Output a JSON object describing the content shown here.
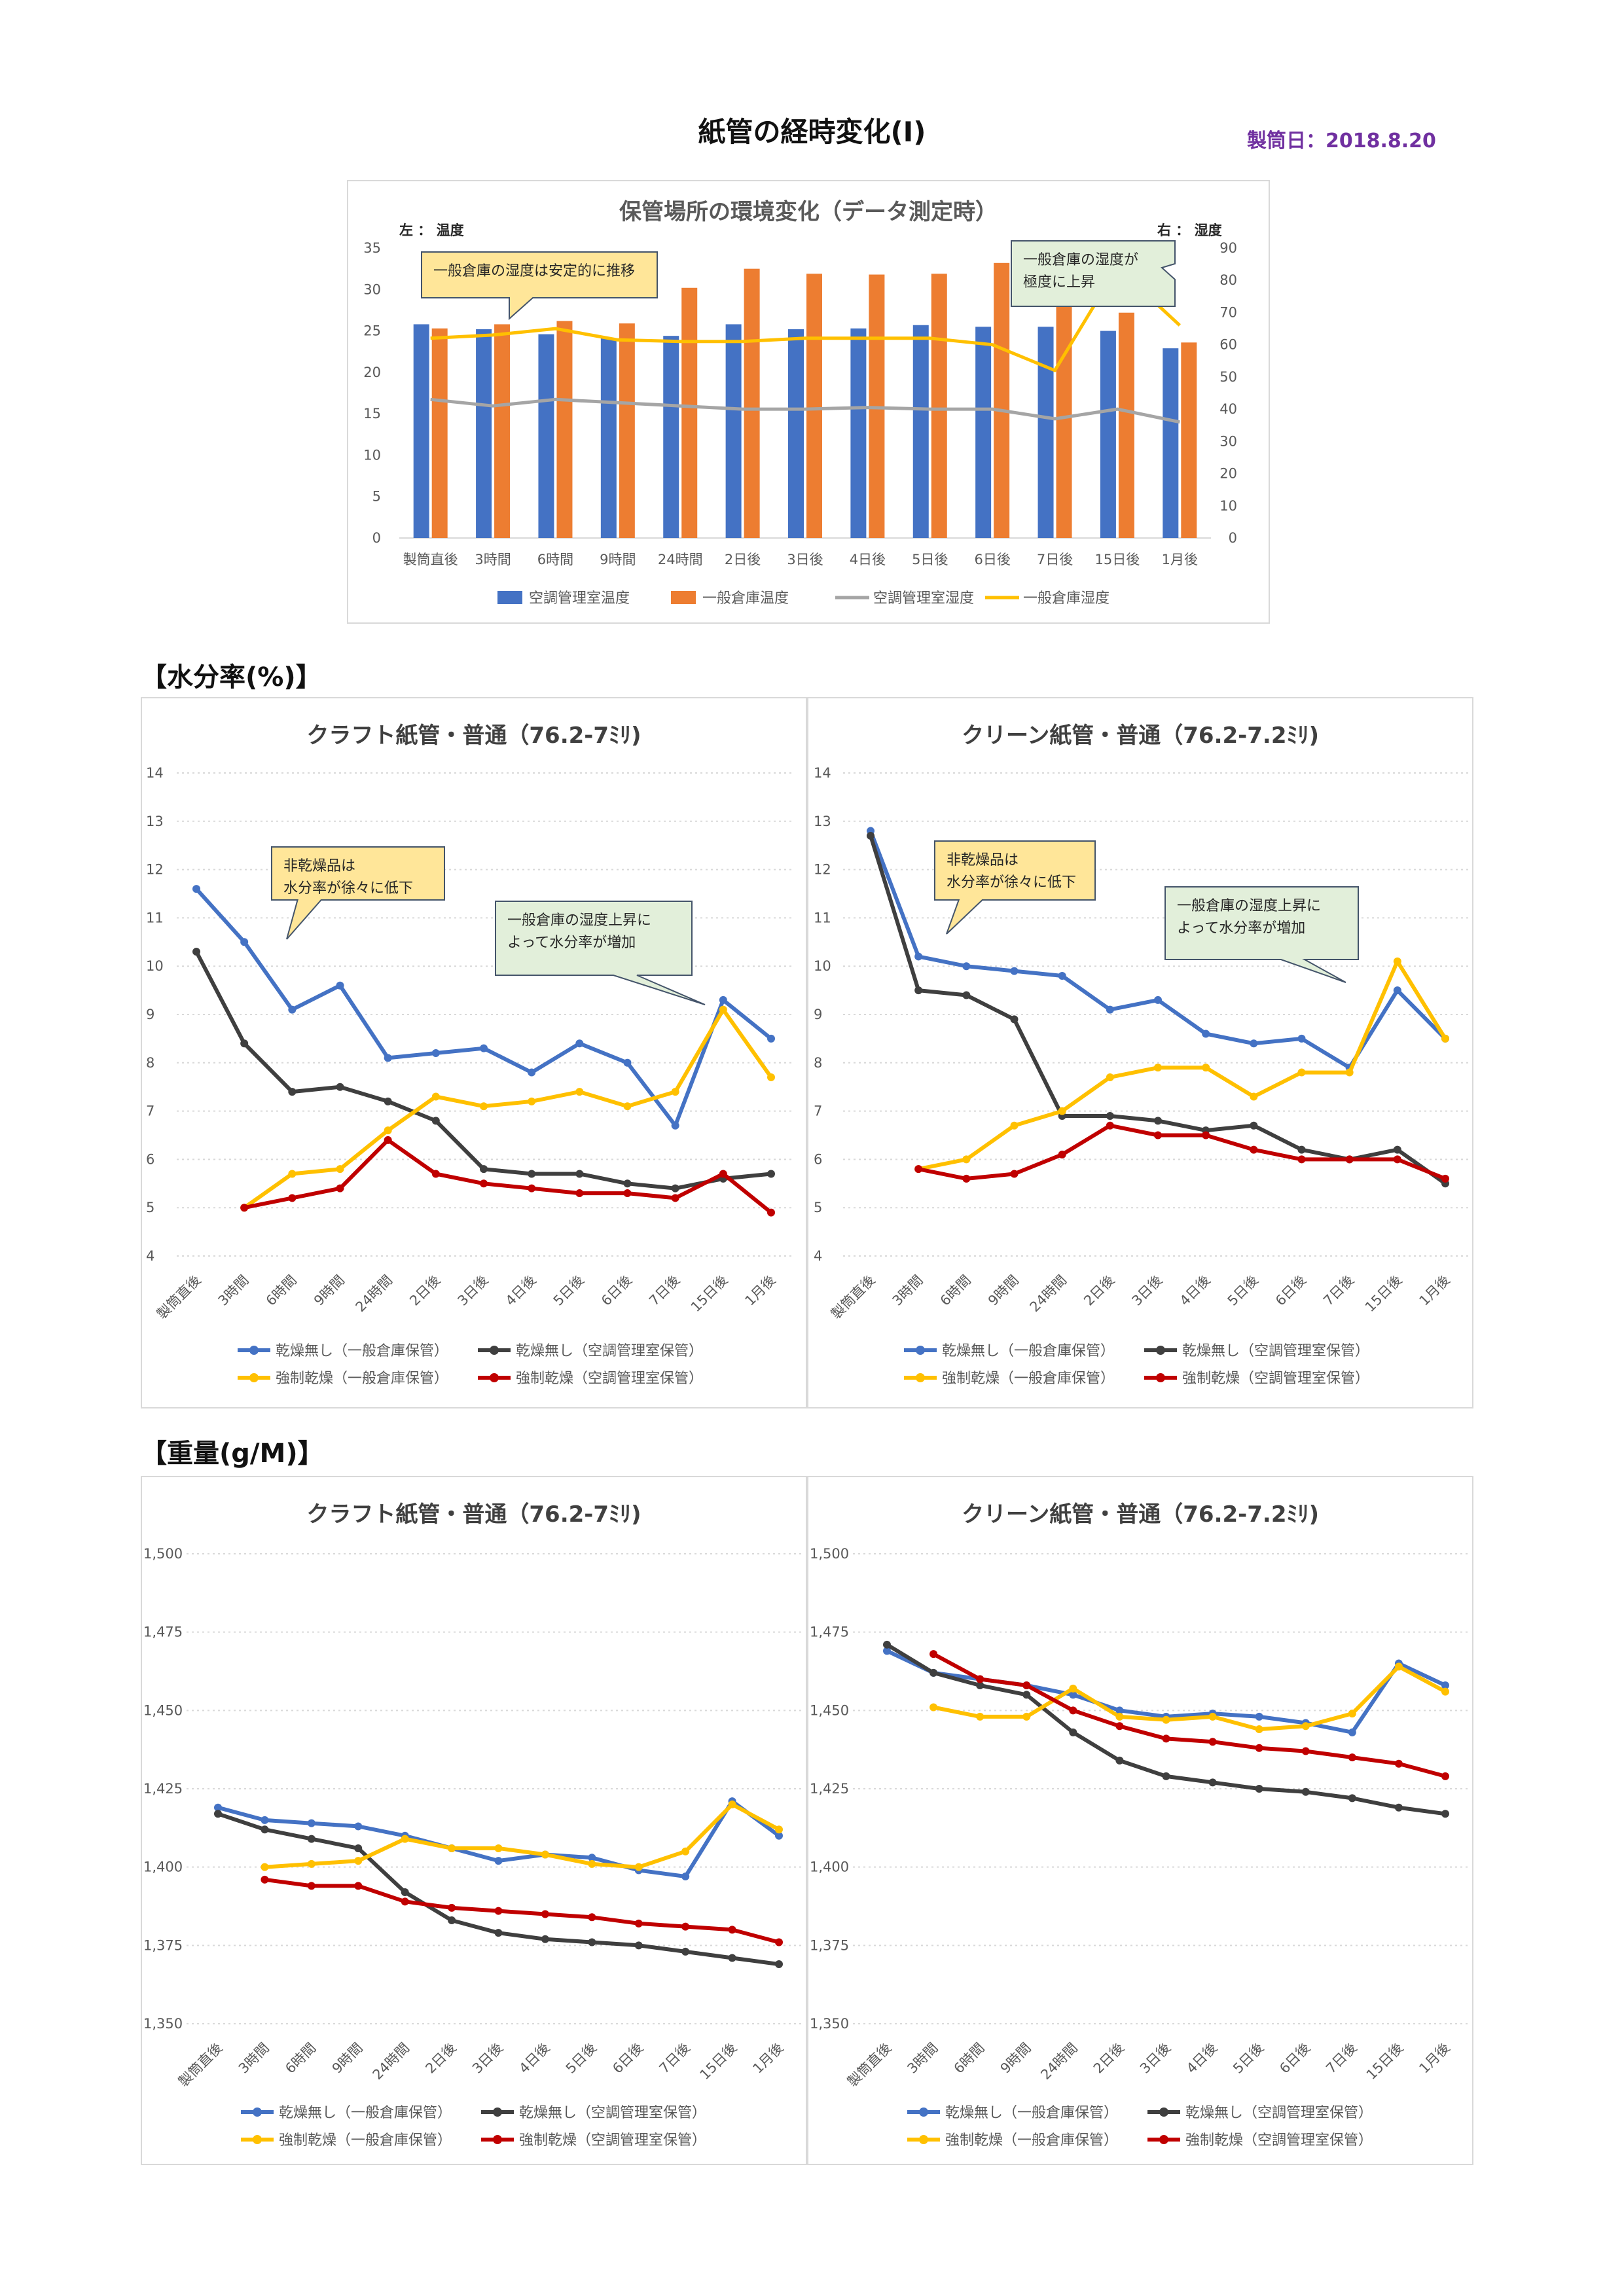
{
  "page": {
    "title": "紙管の経時変化(Ⅰ)",
    "make_date": "製筒日：2018.8.20",
    "section_moisture": "【水分率(%)】",
    "section_weight": "【重量(g/M)】"
  },
  "colors": {
    "blue": "#4472c4",
    "orange": "#ed7d31",
    "gray": "#a5a5a5",
    "yellow": "#ffc000",
    "dark": "#3f3f3f",
    "red": "#c00000",
    "callout_yellow": "#ffe699",
    "callout_green": "#e2efda",
    "callout_border": "#44546a",
    "grid": "#d9d9d9",
    "axis_text": "#595959"
  },
  "chart_data": [
    {
      "id": "env",
      "type": "bar",
      "title": "保管場所の環境変化（データ測定時）",
      "left_axis_label": "左 ： 温度",
      "right_axis_label": "右 ： 湿度",
      "categories": [
        "製筒直後",
        "3時間",
        "6時間",
        "9時間",
        "24時間",
        "2日後",
        "3日後",
        "4日後",
        "5日後",
        "6日後",
        "7日後",
        "15日後",
        "1月後"
      ],
      "ylim_left": [
        0,
        35
      ],
      "yticks_left": [
        0,
        5,
        10,
        15,
        20,
        25,
        30,
        35
      ],
      "ylim_right": [
        0,
        90
      ],
      "yticks_right": [
        0,
        10,
        20,
        30,
        40,
        50,
        60,
        70,
        80,
        90
      ],
      "bars": [
        {
          "name": "空調管理室温度",
          "color": "#4472c4",
          "values": [
            25.8,
            25.2,
            24.6,
            24.1,
            24.4,
            25.8,
            25.2,
            25.3,
            25.7,
            25.5,
            25.5,
            25.0,
            22.9
          ]
        },
        {
          "name": "一般倉庫温度",
          "color": "#ed7d31",
          "values": [
            25.3,
            25.8,
            26.2,
            25.9,
            30.2,
            32.5,
            31.9,
            31.8,
            31.9,
            33.2,
            33.2,
            27.2,
            23.6
          ]
        }
      ],
      "lines": [
        {
          "name": "空調管理室湿度",
          "color": "#a5a5a5",
          "axis": "right",
          "values": [
            43,
            41,
            43,
            42,
            41,
            40,
            40,
            40.5,
            40,
            40,
            37,
            40,
            36
          ]
        },
        {
          "name": "一般倉庫湿度",
          "color": "#ffc000",
          "axis": "right",
          "values": [
            62,
            63,
            65,
            61.5,
            61,
            61,
            62,
            62,
            62,
            60,
            52,
            84,
            66
          ]
        }
      ],
      "callouts": [
        {
          "text": [
            "一般倉庫の湿度は安定的に推移"
          ],
          "style": "yellow"
        },
        {
          "text": [
            "一般倉庫の湿度が",
            "極度に上昇"
          ],
          "style": "green"
        }
      ],
      "grid": false,
      "legend": "bottom"
    },
    {
      "id": "m1",
      "type": "line",
      "title": "クラフト紙管・普通（76.2-7ﾐﾘ)",
      "categories": [
        "製筒直後",
        "3時間",
        "6時間",
        "9時間",
        "24時間",
        "2日後",
        "3日後",
        "4日後",
        "5日後",
        "6日後",
        "7日後",
        "15日後",
        "1月後"
      ],
      "ylim": [
        4,
        14
      ],
      "yticks": [
        4,
        5,
        6,
        7,
        8,
        9,
        10,
        11,
        12,
        13,
        14
      ],
      "series": [
        {
          "name": "乾燥無し（一般倉庫保管）",
          "color": "#4472c4",
          "values": [
            11.6,
            10.5,
            9.1,
            9.6,
            8.1,
            8.2,
            8.3,
            7.8,
            8.4,
            8.0,
            6.7,
            9.3,
            8.5
          ]
        },
        {
          "name": "乾燥無し（空調管理室保管）",
          "color": "#3f3f3f",
          "values": [
            10.3,
            8.4,
            7.4,
            7.5,
            7.2,
            6.8,
            5.8,
            5.7,
            5.7,
            5.5,
            5.4,
            5.6,
            5.7
          ]
        },
        {
          "name": "強制乾燥（一般倉庫保管）",
          "color": "#ffc000",
          "values": [
            null,
            5.0,
            5.7,
            5.8,
            6.6,
            7.3,
            7.1,
            7.2,
            7.4,
            7.1,
            7.4,
            9.1,
            7.7
          ]
        },
        {
          "name": "強制乾燥（空調管理室保管）",
          "color": "#c00000",
          "values": [
            null,
            5.0,
            5.2,
            5.4,
            6.4,
            5.7,
            5.5,
            5.4,
            5.3,
            5.3,
            5.2,
            5.7,
            4.9
          ]
        }
      ],
      "callouts": [
        {
          "text": [
            "非乾燥品は",
            "水分率が徐々に低下"
          ],
          "style": "yellow"
        },
        {
          "text": [
            "一般倉庫の湿度上昇に",
            "よって水分率が増加"
          ],
          "style": "green"
        }
      ],
      "grid": true,
      "legend": "bottom"
    },
    {
      "id": "m2",
      "type": "line",
      "title": "クリーン紙管・普通（76.2-7.2ﾐﾘ)",
      "categories": [
        "製筒直後",
        "3時間",
        "6時間",
        "9時間",
        "24時間",
        "2日後",
        "3日後",
        "4日後",
        "5日後",
        "6日後",
        "7日後",
        "15日後",
        "1月後"
      ],
      "ylim": [
        4,
        14
      ],
      "yticks": [
        4,
        5,
        6,
        7,
        8,
        9,
        10,
        11,
        12,
        13,
        14
      ],
      "series": [
        {
          "name": "乾燥無し（一般倉庫保管）",
          "color": "#4472c4",
          "values": [
            12.8,
            10.2,
            10.0,
            9.9,
            9.8,
            9.1,
            9.3,
            8.6,
            8.4,
            8.5,
            7.9,
            9.5,
            8.5
          ]
        },
        {
          "name": "乾燥無し（空調管理室保管）",
          "color": "#3f3f3f",
          "values": [
            12.7,
            9.5,
            9.4,
            8.9,
            6.9,
            6.9,
            6.8,
            6.6,
            6.7,
            6.2,
            6.0,
            6.2,
            5.5
          ]
        },
        {
          "name": "強制乾燥（一般倉庫保管）",
          "color": "#ffc000",
          "values": [
            null,
            5.8,
            6.0,
            6.7,
            7.0,
            7.7,
            7.9,
            7.9,
            7.3,
            7.8,
            7.8,
            10.1,
            8.5
          ]
        },
        {
          "name": "強制乾燥（空調管理室保管）",
          "color": "#c00000",
          "values": [
            null,
            5.8,
            5.6,
            5.7,
            6.1,
            6.7,
            6.5,
            6.5,
            6.2,
            6.0,
            6.0,
            6.0,
            5.6
          ]
        }
      ],
      "callouts": [
        {
          "text": [
            "非乾燥品は",
            "水分率が徐々に低下"
          ],
          "style": "yellow"
        },
        {
          "text": [
            "一般倉庫の湿度上昇に",
            "よって水分率が増加"
          ],
          "style": "green"
        }
      ],
      "grid": true,
      "legend": "bottom"
    },
    {
      "id": "w1",
      "type": "line",
      "title": "クラフト紙管・普通（76.2-7ﾐﾘ)",
      "categories": [
        "製筒直後",
        "3時間",
        "6時間",
        "9時間",
        "24時間",
        "2日後",
        "3日後",
        "4日後",
        "5日後",
        "6日後",
        "7日後",
        "15日後",
        "1月後"
      ],
      "ylim": [
        1350,
        1500
      ],
      "yticks": [
        1350,
        1375,
        1400,
        1425,
        1450,
        1475,
        1500
      ],
      "ytick_labels": [
        "1,350",
        "1,375",
        "1,400",
        "1,425",
        "1,450",
        "1,475",
        "1,500"
      ],
      "series": [
        {
          "name": "乾燥無し（一般倉庫保管）",
          "color": "#4472c4",
          "values": [
            1419,
            1415,
            1414,
            1413,
            1410,
            1406,
            1402,
            1404,
            1403,
            1399,
            1397,
            1421,
            1410
          ]
        },
        {
          "name": "乾燥無し（空調管理室保管）",
          "color": "#3f3f3f",
          "values": [
            1417,
            1412,
            1409,
            1406,
            1392,
            1383,
            1379,
            1377,
            1376,
            1375,
            1373,
            1371,
            1369
          ]
        },
        {
          "name": "強制乾燥（一般倉庫保管）",
          "color": "#ffc000",
          "values": [
            null,
            1400,
            1401,
            1402,
            1409,
            1406,
            1406,
            1404,
            1401,
            1400,
            1405,
            1420,
            1412
          ]
        },
        {
          "name": "強制乾燥（空調管理室保管）",
          "color": "#c00000",
          "values": [
            null,
            1396,
            1394,
            1394,
            1389,
            1387,
            1386,
            1385,
            1384,
            1382,
            1381,
            1380,
            1376
          ]
        }
      ],
      "grid": true,
      "legend": "bottom"
    },
    {
      "id": "w2",
      "type": "line",
      "title": "クリーン紙管・普通（76.2-7.2ﾐﾘ)",
      "categories": [
        "製筒直後",
        "3時間",
        "6時間",
        "9時間",
        "24時間",
        "2日後",
        "3日後",
        "4日後",
        "5日後",
        "6日後",
        "7日後",
        "15日後",
        "1月後"
      ],
      "ylim": [
        1350,
        1500
      ],
      "yticks": [
        1350,
        1375,
        1400,
        1425,
        1450,
        1475,
        1500
      ],
      "ytick_labels": [
        "1,350",
        "1,375",
        "1,400",
        "1,425",
        "1,450",
        "1,475",
        "1,500"
      ],
      "series": [
        {
          "name": "乾燥無し（一般倉庫保管）",
          "color": "#4472c4",
          "values": [
            1469,
            1462,
            1460,
            1458,
            1455,
            1450,
            1448,
            1449,
            1448,
            1446,
            1443,
            1465,
            1458
          ]
        },
        {
          "name": "乾燥無し（空調管理室保管）",
          "color": "#3f3f3f",
          "values": [
            1471,
            1462,
            1458,
            1455,
            1443,
            1434,
            1429,
            1427,
            1425,
            1424,
            1422,
            1419,
            1417
          ]
        },
        {
          "name": "強制乾燥（一般倉庫保管）",
          "color": "#ffc000",
          "values": [
            null,
            1451,
            1448,
            1448,
            1457,
            1448,
            1447,
            1448,
            1444,
            1445,
            1449,
            1464,
            1456
          ]
        },
        {
          "name": "強制乾燥（空調管理室保管）",
          "color": "#c00000",
          "values": [
            null,
            1468,
            1460,
            1458,
            1450,
            1445,
            1441,
            1440,
            1438,
            1437,
            1435,
            1433,
            1429
          ]
        }
      ],
      "grid": true,
      "legend": "bottom"
    }
  ]
}
